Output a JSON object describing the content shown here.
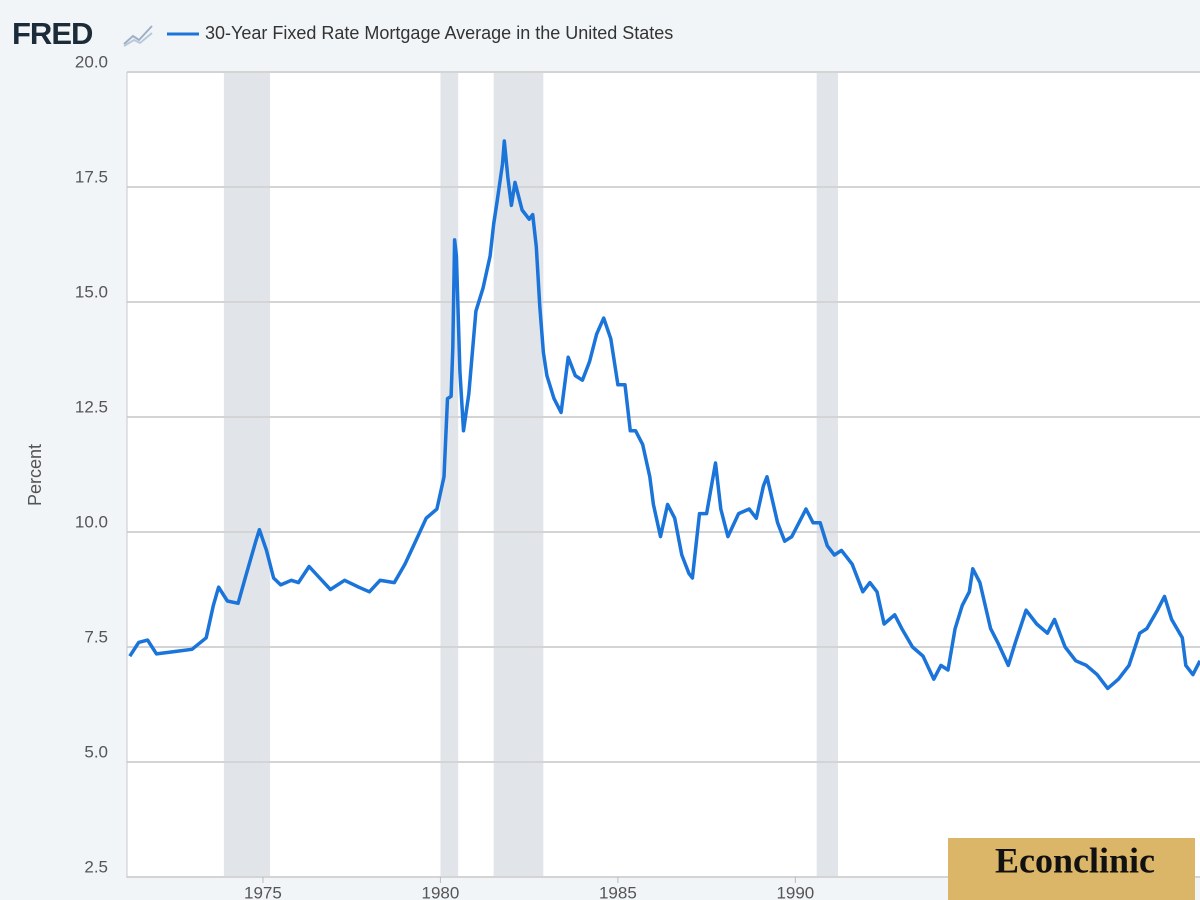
{
  "brand": {
    "logo": "FRED",
    "watermark": "Econclinic"
  },
  "chart_data": {
    "type": "line",
    "y_label": "Percent",
    "xlim": [
      1971.17,
      2001.4
    ],
    "xticks": [
      1975,
      1980,
      1985,
      1990
    ],
    "ylim": [
      2.5,
      20
    ],
    "yticks": [
      {
        "value": 2.5,
        "label": "2.5"
      },
      {
        "value": 5,
        "label": "5.0"
      },
      7.5,
      {
        "value": 10,
        "label": "10.0"
      },
      12.5,
      {
        "value": 15,
        "label": "15.0"
      },
      17.5,
      {
        "value": 20,
        "label": "20.0"
      }
    ],
    "grid": true,
    "recession_color": "#e1e4e8",
    "recessions": [
      [
        1973.9,
        1975.2
      ],
      [
        1980.0,
        1980.5
      ],
      [
        1981.5,
        1982.9
      ],
      [
        1990.6,
        1991.2
      ]
    ],
    "series": [
      {
        "name": "30-Year Fixed Rate Mortgage Average in the United States",
        "color": "#1a74d9",
        "x": [
          1971.25,
          1971.5,
          1971.75,
          1972.0,
          1972.5,
          1973.0,
          1973.4,
          1973.6,
          1973.75,
          1974.0,
          1974.3,
          1974.5,
          1974.8,
          1974.9,
          1975.1,
          1975.3,
          1975.5,
          1975.8,
          1976.0,
          1976.3,
          1976.6,
          1976.9,
          1977.3,
          1977.7,
          1978.0,
          1978.3,
          1978.7,
          1979.0,
          1979.3,
          1979.6,
          1979.9,
          1980.1,
          1980.2,
          1980.3,
          1980.35,
          1980.4,
          1980.45,
          1980.55,
          1980.65,
          1980.8,
          1981.0,
          1981.2,
          1981.4,
          1981.5,
          1981.6,
          1981.75,
          1981.8,
          1981.9,
          1982.0,
          1982.1,
          1982.3,
          1982.5,
          1982.6,
          1982.7,
          1982.8,
          1982.9,
          1983.0,
          1983.2,
          1983.4,
          1983.6,
          1983.8,
          1984.0,
          1984.2,
          1984.4,
          1984.6,
          1984.8,
          1985.0,
          1985.2,
          1985.35,
          1985.5,
          1985.7,
          1985.9,
          1986.0,
          1986.2,
          1986.4,
          1986.6,
          1986.8,
          1987.0,
          1987.1,
          1987.3,
          1987.5,
          1987.75,
          1987.9,
          1988.1,
          1988.4,
          1988.7,
          1988.9,
          1989.1,
          1989.2,
          1989.5,
          1989.7,
          1989.9,
          1990.1,
          1990.3,
          1990.5,
          1990.7,
          1990.9,
          1991.1,
          1991.3,
          1991.6,
          1991.9,
          1992.1,
          1992.3,
          1992.5,
          1992.8,
          1993.0,
          1993.3,
          1993.6,
          1993.9,
          1994.1,
          1994.3,
          1994.5,
          1994.7,
          1994.9,
          1995.0,
          1995.2,
          1995.5,
          1995.7,
          1996.0,
          1996.2,
          1996.5,
          1996.8,
          1997.1,
          1997.3,
          1997.6,
          1997.9,
          1998.2,
          1998.5,
          1998.8,
          1999.1,
          1999.4,
          1999.7,
          1999.9,
          2000.2,
          2000.4,
          2000.6,
          2000.9,
          2001.0,
          2001.2,
          2001.4
        ],
        "values": [
          7.3,
          7.6,
          7.65,
          7.35,
          7.4,
          7.45,
          7.7,
          8.4,
          8.8,
          8.5,
          8.45,
          9.0,
          9.8,
          10.05,
          9.6,
          9.0,
          8.85,
          8.95,
          8.9,
          9.25,
          9.0,
          8.75,
          8.95,
          8.8,
          8.7,
          8.95,
          8.9,
          9.3,
          9.8,
          10.3,
          10.5,
          11.2,
          12.9,
          12.95,
          14.0,
          16.35,
          16.0,
          13.5,
          12.2,
          13.0,
          14.8,
          15.3,
          16.0,
          16.7,
          17.2,
          18.0,
          18.5,
          17.7,
          17.1,
          17.6,
          17.0,
          16.8,
          16.9,
          16.2,
          14.9,
          13.9,
          13.4,
          12.9,
          12.6,
          13.8,
          13.4,
          13.3,
          13.7,
          14.3,
          14.65,
          14.2,
          13.2,
          13.2,
          12.2,
          12.2,
          11.9,
          11.2,
          10.6,
          9.9,
          10.6,
          10.3,
          9.5,
          9.1,
          9.0,
          10.4,
          10.4,
          11.5,
          10.5,
          9.9,
          10.4,
          10.5,
          10.3,
          11.0,
          11.2,
          10.2,
          9.8,
          9.9,
          10.2,
          10.5,
          10.2,
          10.2,
          9.7,
          9.5,
          9.6,
          9.3,
          8.7,
          8.9,
          8.7,
          8.0,
          8.2,
          7.9,
          7.5,
          7.3,
          6.8,
          7.1,
          7.0,
          7.9,
          8.4,
          8.7,
          9.2,
          8.9,
          7.9,
          7.6,
          7.1,
          7.6,
          8.3,
          8.0,
          7.8,
          8.1,
          7.5,
          7.2,
          7.1,
          6.9,
          6.6,
          6.8,
          7.1,
          7.8,
          7.9,
          8.3,
          8.6,
          8.1,
          7.7,
          7.1,
          6.9,
          7.2
        ]
      }
    ]
  }
}
